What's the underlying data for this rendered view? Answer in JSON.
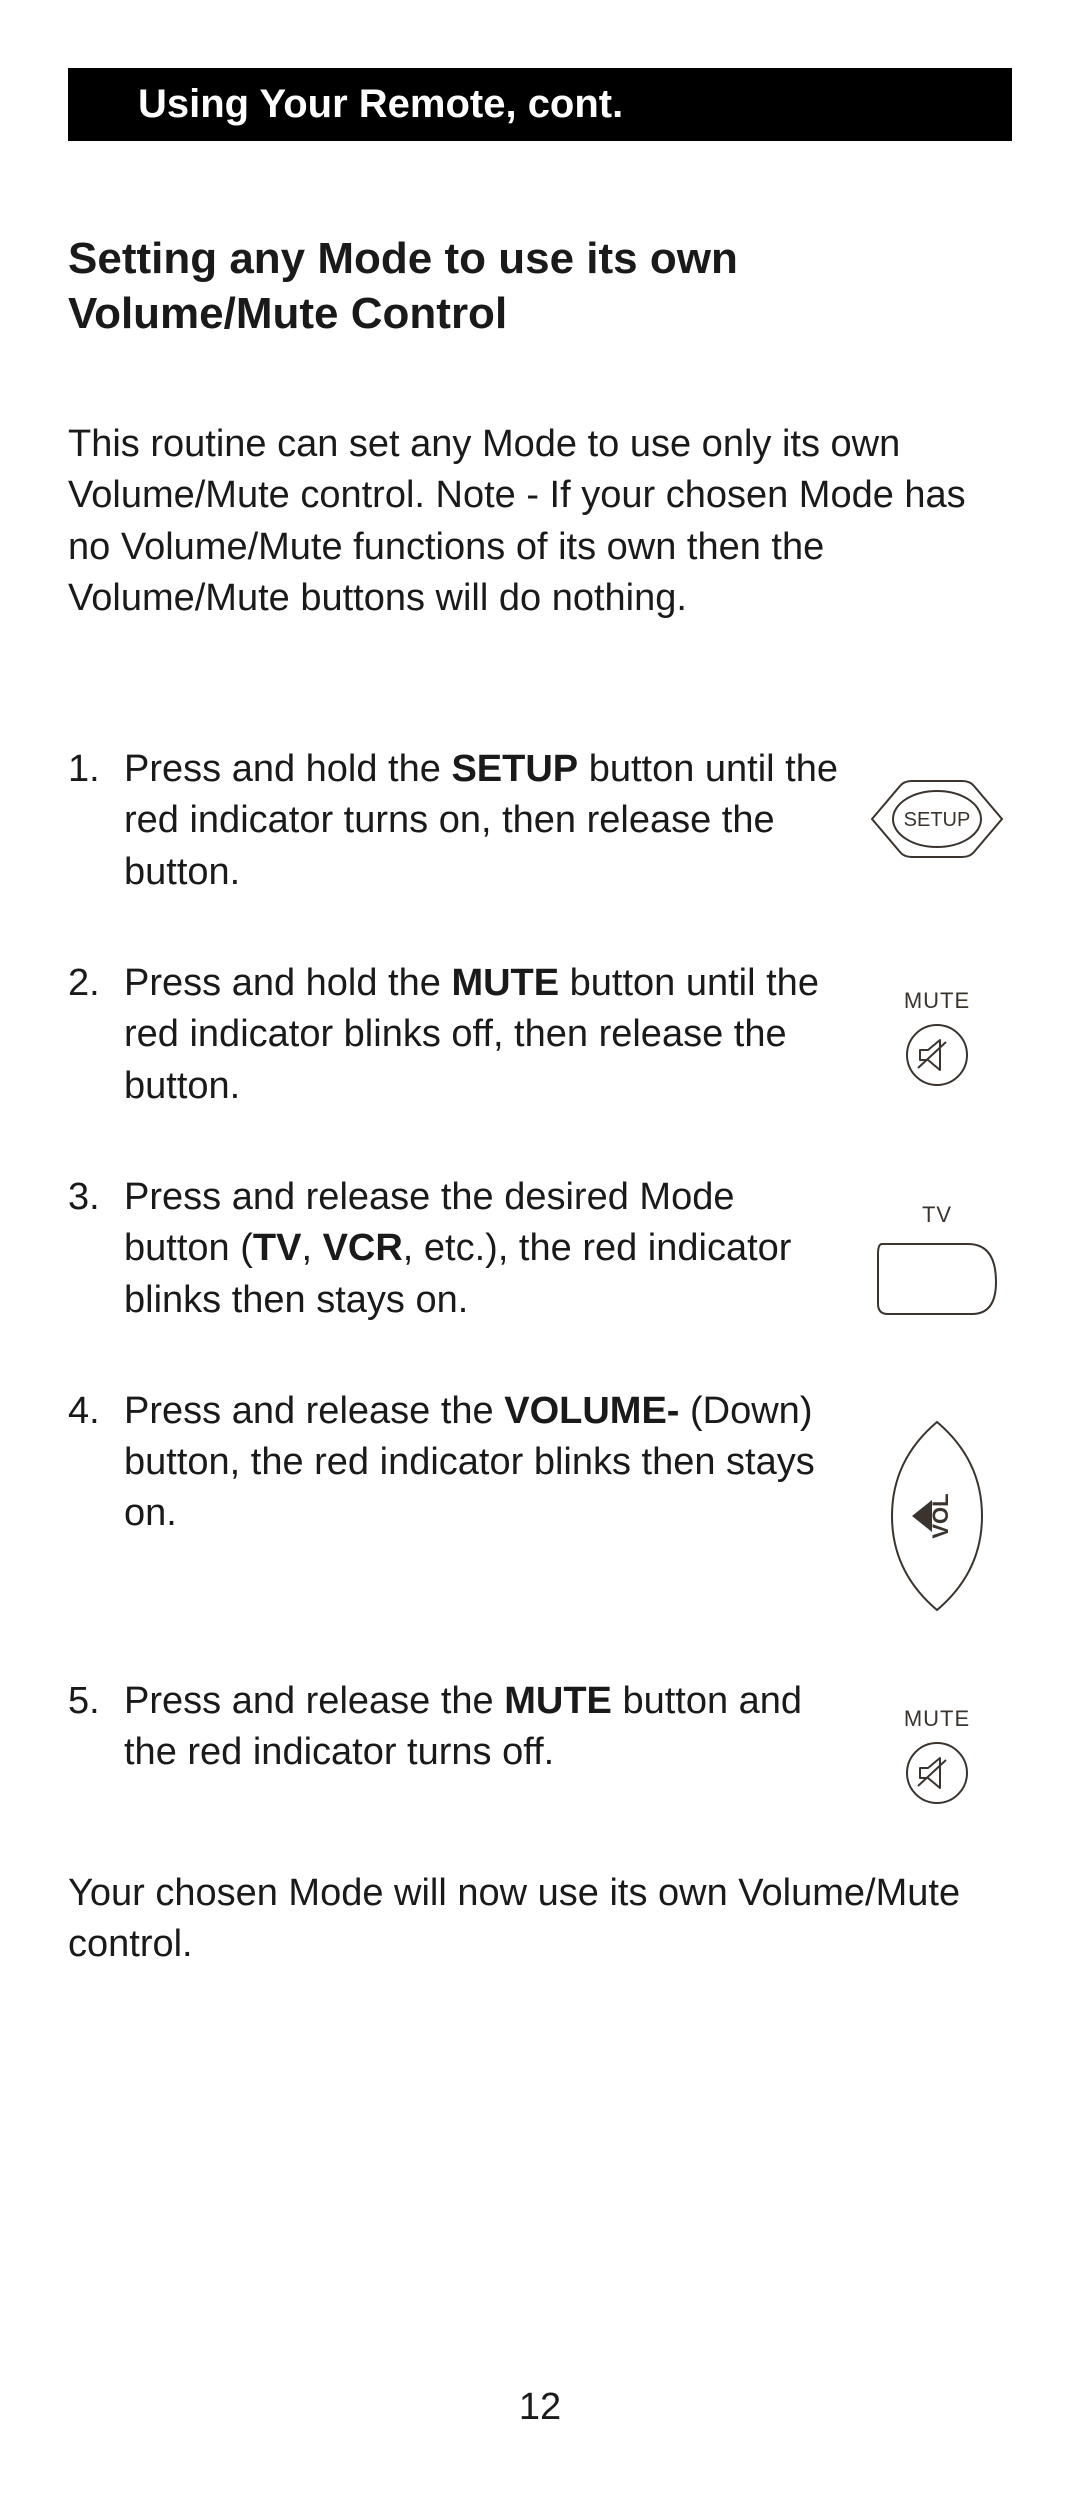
{
  "header": "Using Your Remote, cont.",
  "subheading": "Setting any Mode to use its own Volume/Mute Control",
  "intro": "This routine can set any Mode to use only its own Volume/Mute control. Note - If your chosen Mode has no Volume/Mute functions of its own then the Volume/Mute buttons will do nothing.",
  "steps": [
    {
      "num": "1.",
      "html": "Press and hold the <b>SETUP</b> button until the red indicator turns on, then release the button.",
      "icon": {
        "type": "setup",
        "label": "SETUP"
      }
    },
    {
      "num": "2.",
      "html": "Press and hold the <b>MUTE</b> button until the red indicator blinks off, then release the button.",
      "icon": {
        "type": "mute",
        "label": "MUTE"
      }
    },
    {
      "num": "3.",
      "html": "Press and release the desired Mode button (<b>TV</b>, <b>VCR</b>, etc.), the red indicator blinks then stays on.",
      "icon": {
        "type": "tv",
        "label": "TV"
      }
    },
    {
      "num": "4.",
      "html": "Press and release the <b>VOLUME-</b> (Down) button, the red indicator blinks then stays on.",
      "icon": {
        "type": "vol",
        "label": "VOL"
      }
    },
    {
      "num": "5.",
      "html": "Press and release the <b>MUTE</b> button and the red indicator turns off.",
      "icon": {
        "type": "mute",
        "label": "MUTE"
      }
    }
  ],
  "outro": "Your chosen Mode will now use its own Volume/Mute control.",
  "page_number": "12",
  "style": {
    "stroke": "#3b342e",
    "stroke_width": 2,
    "text_color": "#1a1a1a",
    "bg": "#ffffff",
    "header_bg": "#000000",
    "header_fg": "#ffffff"
  }
}
